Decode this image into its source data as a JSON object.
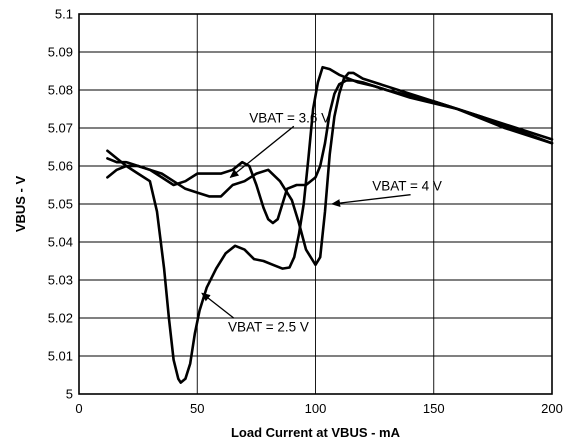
{
  "chart_data": {
    "type": "line",
    "title": "",
    "xlabel": "Load Current at VBUS - mA",
    "ylabel": "VBUS - V",
    "xlim": [
      0,
      200
    ],
    "ylim": [
      5.0,
      5.1
    ],
    "x_ticks": [
      "0",
      "50",
      "100",
      "150",
      "200"
    ],
    "y_ticks": [
      "5",
      "5.01",
      "5.02",
      "5.03",
      "5.04",
      "5.05",
      "5.06",
      "5.07",
      "5.08",
      "5.09",
      "5.1"
    ],
    "grid": true,
    "legend": "none",
    "line_color": "#000000",
    "series": [
      {
        "name": "VBAT = 2.5 V",
        "x": [
          12,
          16,
          20,
          25,
          30,
          33,
          36,
          38,
          40,
          42,
          43,
          45,
          47,
          49,
          51,
          54,
          58,
          62,
          66,
          70,
          74,
          78,
          82,
          86,
          89,
          91,
          93,
          95,
          97,
          99,
          101,
          103,
          106,
          110,
          114,
          118,
          125,
          140,
          160,
          180,
          200
        ],
        "y": [
          5.064,
          5.062,
          5.06,
          5.058,
          5.056,
          5.048,
          5.033,
          5.02,
          5.009,
          5.004,
          5.003,
          5.004,
          5.008,
          5.016,
          5.022,
          5.028,
          5.033,
          5.037,
          5.039,
          5.038,
          5.0355,
          5.035,
          5.034,
          5.033,
          5.0333,
          5.036,
          5.042,
          5.05,
          5.062,
          5.075,
          5.082,
          5.086,
          5.0855,
          5.084,
          5.083,
          5.082,
          5.081,
          5.078,
          5.075,
          5.07,
          5.066
        ]
      },
      {
        "name": "VBAT = 3.6 V",
        "x": [
          12,
          16,
          20,
          25,
          30,
          35,
          40,
          45,
          50,
          55,
          60,
          65,
          70,
          75,
          80,
          85,
          90,
          93,
          96,
          99,
          100,
          102,
          104,
          106,
          108,
          110,
          112,
          114,
          116,
          120,
          130,
          150,
          170,
          200
        ],
        "y": [
          5.062,
          5.061,
          5.061,
          5.06,
          5.059,
          5.058,
          5.056,
          5.054,
          5.053,
          5.052,
          5.052,
          5.055,
          5.056,
          5.058,
          5.059,
          5.056,
          5.051,
          5.045,
          5.038,
          5.035,
          5.034,
          5.036,
          5.048,
          5.063,
          5.073,
          5.079,
          5.083,
          5.0845,
          5.0845,
          5.083,
          5.081,
          5.077,
          5.073,
          5.066
        ]
      },
      {
        "name": "VBAT = 4 V",
        "x": [
          12,
          16,
          20,
          25,
          30,
          35,
          40,
          45,
          50,
          55,
          60,
          65,
          69,
          72,
          75,
          78,
          80,
          82,
          84,
          86,
          88,
          92,
          96,
          100,
          102,
          104,
          106,
          108,
          110,
          113,
          116,
          120,
          130,
          150,
          170,
          200
        ],
        "y": [
          5.057,
          5.059,
          5.06,
          5.06,
          5.059,
          5.057,
          5.055,
          5.056,
          5.058,
          5.058,
          5.058,
          5.059,
          5.061,
          5.06,
          5.055,
          5.049,
          5.046,
          5.045,
          5.046,
          5.05,
          5.054,
          5.055,
          5.055,
          5.057,
          5.06,
          5.066,
          5.074,
          5.079,
          5.0815,
          5.0825,
          5.0825,
          5.082,
          5.08,
          5.077,
          5.073,
          5.067
        ]
      }
    ],
    "annotations": [
      {
        "text": "VBAT = 3.6 V",
        "x": 72,
        "y": 5.0715,
        "arrow_to": [
          64,
          5.057
        ]
      },
      {
        "text": "VBAT = 4 V",
        "x": 124,
        "y": 5.0535,
        "arrow_to": [
          107,
          5.05
        ]
      },
      {
        "text": "VBAT = 2.5 V",
        "x": 63,
        "y": 5.0165,
        "arrow_to": [
          52,
          5.0265
        ]
      }
    ]
  }
}
